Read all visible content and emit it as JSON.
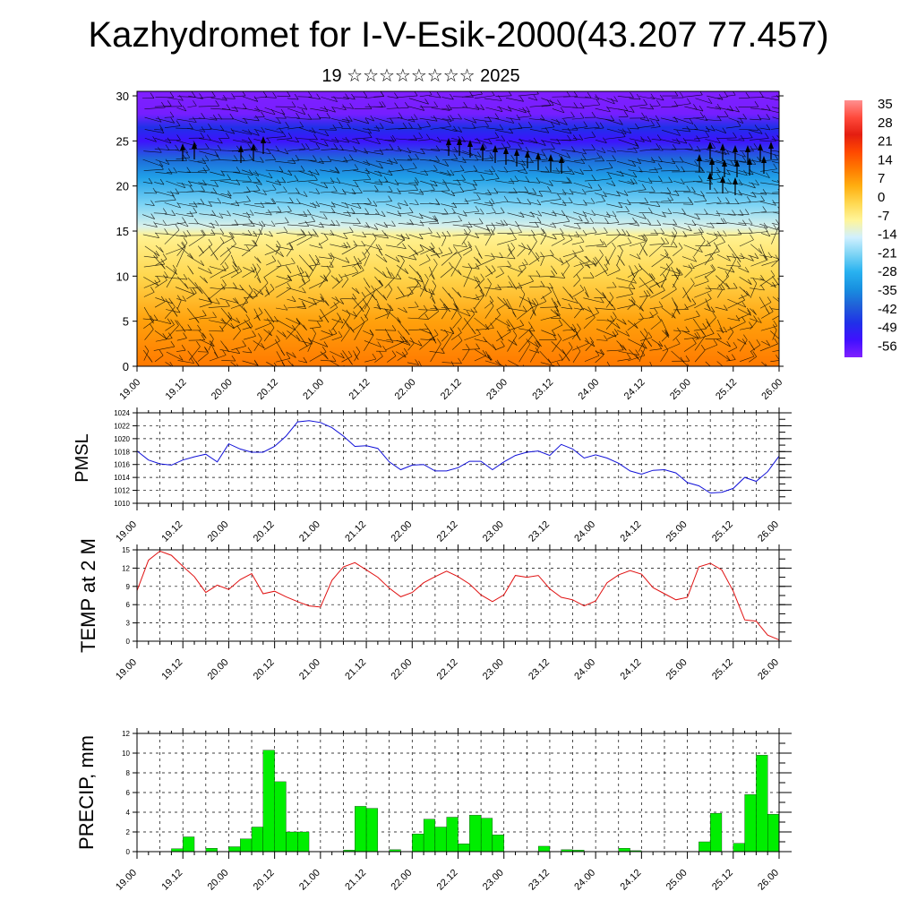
{
  "title": "Kazhydromet for I-V-Esik-2000(43.207 77.457)",
  "subtitle": "19 ☆☆☆☆☆☆☆☆ 2025",
  "x_ticks": [
    "19.00",
    "19.12",
    "20.00",
    "20.12",
    "21.00",
    "21.12",
    "22.00",
    "22.12",
    "23.00",
    "23.12",
    "24.00",
    "24.12",
    "25.00",
    "25.12",
    "26.00"
  ],
  "colors": {
    "pmsl_line": "#1010d8",
    "temp_line": "#e01010",
    "precip_bar": "#00ee00",
    "precip_edge": "#000000"
  },
  "chart_data": [
    {
      "type": "heatmap",
      "title": "Kazhydromet for I-V-Esik-2000(43.207 77.457)",
      "subtitle": "19 ☆☆☆☆☆☆☆☆ 2025",
      "y_ticks": [
        0,
        5,
        10,
        15,
        20,
        25,
        30
      ],
      "ylim": [
        0,
        30.5
      ],
      "colorbar": {
        "labels": [
          "35",
          "28",
          "21",
          "14",
          "7",
          "0",
          "-7",
          "-14",
          "-21",
          "-28",
          "-35",
          "-42",
          "-49",
          "-56"
        ],
        "palette": [
          "#ff9090",
          "#ff4a3c",
          "#e41e10",
          "#ff4800",
          "#ff7a00",
          "#ffae10",
          "#ffd850",
          "#fff59a",
          "#d0f0ff",
          "#7dd4f5",
          "#29b2f0",
          "#1890e0",
          "#2060d8",
          "#2030e8",
          "#4010ff",
          "#8020ff"
        ]
      },
      "field_profile": [
        {
          "level": 0,
          "value": 9
        },
        {
          "level": 5,
          "value": 4
        },
        {
          "level": 10,
          "value": -4
        },
        {
          "level": 14.5,
          "value": -10
        },
        {
          "level": 15.5,
          "value": -16
        },
        {
          "level": 18,
          "value": -24
        },
        {
          "level": 21,
          "value": -34
        },
        {
          "level": 23,
          "value": -42
        },
        {
          "level": 25,
          "value": -56
        },
        {
          "level": 26.5,
          "value": -50
        },
        {
          "level": 28,
          "value": -62
        },
        {
          "level": 30.5,
          "value": -64
        }
      ]
    },
    {
      "type": "line",
      "ylabel": "PMSL",
      "ylim": [
        1010,
        1024
      ],
      "y_ticks": [
        "1024",
        "1022",
        "1020",
        "1018",
        "1016",
        "1014",
        "1012",
        "1010"
      ],
      "x": [
        0,
        3,
        6,
        9,
        12,
        15,
        18,
        21,
        24,
        27,
        30,
        33,
        36,
        39,
        42,
        45,
        48,
        51,
        54,
        57,
        60,
        63,
        66,
        69,
        72,
        75,
        78,
        81,
        84,
        87,
        90,
        93,
        96,
        99,
        102,
        105,
        108,
        111,
        114,
        117,
        120,
        123,
        126,
        129,
        132,
        135,
        138,
        141,
        144,
        147,
        150,
        153,
        156,
        159,
        162,
        165,
        168
      ],
      "series": [
        {
          "values": [
            1018.1,
            1016.7,
            1016.1,
            1015.9,
            1016.7,
            1017.2,
            1017.6,
            1016.4,
            1019.2,
            1018.4,
            1017.9,
            1017.9,
            1018.8,
            1020.4,
            1022.6,
            1022.8,
            1022.5,
            1021.7,
            1020.4,
            1018.8,
            1018.9,
            1018.5,
            1016.4,
            1015.2,
            1015.9,
            1016.0,
            1015.0,
            1015.0,
            1015.5,
            1016.5,
            1016.5,
            1015.2,
            1016.4,
            1017.4,
            1017.9,
            1018.1,
            1017.4,
            1019.1,
            1018.4,
            1017.0,
            1017.5,
            1017.0,
            1016.2,
            1015.0,
            1014.5,
            1015.1,
            1015.2,
            1014.7,
            1013.2,
            1012.7,
            1011.6,
            1011.7,
            1012.3,
            1014.0,
            1013.4,
            1014.9,
            1017.3
          ]
        }
      ]
    },
    {
      "type": "line",
      "ylabel": "TEMP at 2 M",
      "ylim": [
        0,
        15
      ],
      "y_ticks": [
        "15",
        "12",
        "9",
        "6",
        "3",
        "0"
      ],
      "x": [
        0,
        3,
        6,
        9,
        12,
        15,
        18,
        21,
        24,
        27,
        30,
        33,
        36,
        39,
        42,
        45,
        48,
        51,
        54,
        57,
        60,
        63,
        66,
        69,
        72,
        75,
        78,
        81,
        84,
        87,
        90,
        93,
        96,
        99,
        102,
        105,
        108,
        111,
        114,
        117,
        120,
        123,
        126,
        129,
        132,
        135,
        138,
        141,
        144,
        147,
        150,
        153,
        156,
        159,
        162,
        165,
        168
      ],
      "series": [
        {
          "values": [
            8.3,
            13.3,
            14.8,
            14.1,
            12.3,
            10.6,
            8.0,
            9.2,
            8.5,
            10.1,
            11.1,
            7.8,
            8.2,
            7.3,
            6.5,
            5.8,
            5.6,
            10.0,
            12.2,
            12.9,
            11.7,
            10.5,
            8.7,
            7.3,
            8.0,
            9.6,
            10.6,
            11.5,
            10.6,
            9.4,
            7.6,
            6.5,
            7.6,
            10.8,
            10.5,
            10.8,
            8.6,
            7.2,
            6.8,
            5.8,
            6.6,
            9.6,
            10.9,
            11.6,
            11.0,
            8.8,
            7.8,
            6.8,
            7.2,
            12.2,
            12.8,
            11.7,
            8.2,
            3.5,
            3.3,
            1.0,
            0.2
          ]
        }
      ]
    },
    {
      "type": "bar",
      "ylabel": "PRECIP, mm",
      "ylim": [
        0,
        12
      ],
      "y_ticks": [
        "12",
        "10",
        "8",
        "6",
        "4",
        "2",
        "0"
      ],
      "categories": [
        "0",
        "3",
        "6",
        "9",
        "12",
        "15",
        "18",
        "21",
        "24",
        "27",
        "30",
        "33",
        "36",
        "39",
        "42",
        "45",
        "48",
        "51",
        "54",
        "57",
        "60",
        "63",
        "66",
        "69",
        "72",
        "75",
        "78",
        "81",
        "84",
        "87",
        "90",
        "93",
        "96",
        "99",
        "102",
        "105",
        "108",
        "111",
        "114",
        "117",
        "120",
        "123",
        "126",
        "129",
        "132",
        "135",
        "138",
        "141",
        "144",
        "147",
        "150",
        "153",
        "156",
        "159",
        "162",
        "165"
      ],
      "values": [
        0,
        0,
        0,
        0.3,
        1.5,
        0,
        0.35,
        0,
        0.5,
        1.3,
        2.5,
        10.3,
        7.1,
        2.0,
        2.0,
        0,
        0,
        0,
        0.15,
        4.6,
        4.4,
        0,
        0.2,
        0,
        1.8,
        3.3,
        2.5,
        3.5,
        0.8,
        3.7,
        3.4,
        1.7,
        0,
        0,
        0,
        0.55,
        0,
        0.2,
        0.15,
        0,
        0,
        0,
        0.35,
        0.1,
        0,
        0,
        0,
        0,
        0,
        1.0,
        3.9,
        0,
        0.85,
        5.8,
        9.8,
        3.8
      ]
    }
  ]
}
